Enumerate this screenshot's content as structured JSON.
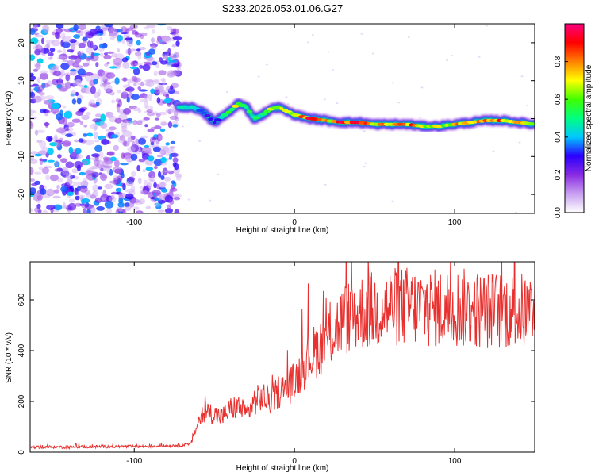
{
  "title": "S233.2026.053.01.06.G27",
  "chart_data": [
    {
      "type": "heatmap",
      "xlabel": "Height of straight line (km)",
      "ylabel": "Frequency (Hz)",
      "xlim": [
        -165,
        150
      ],
      "ylim": [
        -25,
        25
      ],
      "xticks": [
        -100,
        0,
        100
      ],
      "yticks": [
        -20,
        -10,
        0,
        10,
        20
      ],
      "colorbar": {
        "label": "Normalized spectral amplitude",
        "range": [
          0,
          1
        ],
        "ticks": [
          "0.0",
          "0.2",
          "0.4",
          "0.6",
          "0.8"
        ],
        "colors": [
          "#ffffff",
          "#c8a0f0",
          "#8a2be2",
          "#2b00ff",
          "#00c8ff",
          "#00ff80",
          "#40ff00",
          "#ffff00",
          "#ff8000",
          "#ff0000",
          "#ff0080"
        ]
      },
      "noise_region_x": [
        -165,
        -72
      ],
      "ridge": {
        "x": [
          -72,
          -65,
          -60,
          -55,
          -50,
          -45,
          -40,
          -35,
          -30,
          -25,
          -20,
          -15,
          -10,
          -5,
          0,
          10,
          20,
          30,
          40,
          50,
          60,
          70,
          80,
          90,
          100,
          110,
          120,
          130,
          140,
          150
        ],
        "freq": [
          3,
          3,
          2.5,
          1,
          -1,
          0.5,
          2,
          4,
          3,
          0,
          1,
          2.5,
          3,
          2,
          1,
          0,
          -0.5,
          -1,
          -1,
          -1.5,
          -1.5,
          -1.5,
          -2,
          -2,
          -1.5,
          -1,
          -0.5,
          -0.5,
          -1,
          -1.5
        ],
        "amp": [
          0.5,
          0.55,
          0.45,
          0.35,
          0.3,
          0.5,
          0.6,
          0.75,
          0.6,
          0.5,
          0.6,
          0.65,
          0.7,
          0.7,
          0.75,
          0.95,
          0.8,
          0.95,
          0.95,
          0.85,
          0.85,
          0.9,
          0.8,
          0.75,
          0.8,
          0.85,
          0.9,
          0.85,
          0.8,
          0.8
        ]
      }
    },
    {
      "type": "line",
      "xlabel": "Height of straight line (km)",
      "ylabel": "SNR (10 * v/v)",
      "xlim": [
        -165,
        150
      ],
      "ylim": [
        0,
        750
      ],
      "xticks": [
        -100,
        0,
        100
      ],
      "yticks": [
        0,
        200,
        400,
        600
      ],
      "color": "#e8312f",
      "series": [
        {
          "name": "SNR",
          "x": [
            -165,
            -140,
            -120,
            -100,
            -80,
            -65,
            -60,
            -55,
            -50,
            -45,
            -40,
            -35,
            -30,
            -25,
            -20,
            -15,
            -10,
            -5,
            0,
            10,
            20,
            30,
            40,
            50,
            60,
            70,
            80,
            90,
            100,
            110,
            120,
            130,
            140,
            150
          ],
          "y": [
            20,
            20,
            22,
            22,
            25,
            30,
            120,
            160,
            150,
            140,
            170,
            180,
            150,
            200,
            220,
            200,
            240,
            250,
            280,
            380,
            440,
            520,
            550,
            560,
            570,
            575,
            570,
            565,
            570,
            565,
            560,
            560,
            555,
            550
          ]
        }
      ]
    }
  ]
}
